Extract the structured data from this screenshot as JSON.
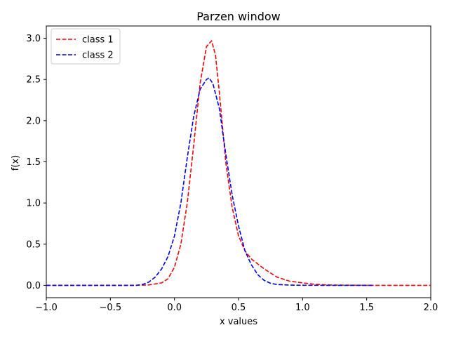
{
  "chart_data": {
    "type": "line",
    "title": "Parzen window",
    "xlabel": "x values",
    "ylabel": "f(x)",
    "xlim": [
      -1.0,
      2.0
    ],
    "ylim": [
      -0.15,
      3.15
    ],
    "xticks": [
      "−1.0",
      "−0.5",
      "0.0",
      "0.5",
      "1.0",
      "1.5",
      "2.0"
    ],
    "yticks": [
      "0.0",
      "0.5",
      "1.0",
      "1.5",
      "2.0",
      "2.5",
      "3.0"
    ],
    "grid": false,
    "legend_position": "top-left",
    "series": [
      {
        "name": "class 1",
        "color": "#ff0000",
        "line_style": "dashed",
        "x": [
          -1.0,
          -0.5,
          -0.3,
          -0.2,
          -0.1,
          -0.05,
          0.0,
          0.05,
          0.1,
          0.15,
          0.2,
          0.25,
          0.29,
          0.32,
          0.35,
          0.4,
          0.45,
          0.5,
          0.55,
          0.6,
          0.65,
          0.7,
          0.8,
          0.9,
          1.0,
          1.1,
          1.2,
          1.5,
          2.0
        ],
        "y": [
          0.0,
          0.0,
          0.0,
          0.005,
          0.03,
          0.08,
          0.22,
          0.5,
          1.0,
          1.7,
          2.45,
          2.9,
          2.97,
          2.8,
          2.35,
          1.5,
          0.95,
          0.6,
          0.42,
          0.32,
          0.26,
          0.2,
          0.1,
          0.05,
          0.03,
          0.012,
          0.004,
          0.0,
          0.0
        ]
      },
      {
        "name": "class 2",
        "color": "#0000ff",
        "line_style": "dashed",
        "x": [
          -1.0,
          -0.3,
          -0.25,
          -0.2,
          -0.15,
          -0.1,
          -0.05,
          0.0,
          0.05,
          0.1,
          0.15,
          0.2,
          0.25,
          0.27,
          0.3,
          0.35,
          0.4,
          0.45,
          0.5,
          0.55,
          0.6,
          0.65,
          0.7,
          0.75,
          0.8,
          0.9,
          1.0,
          1.2,
          1.55
        ],
        "y": [
          0.0,
          0.0,
          0.01,
          0.04,
          0.1,
          0.2,
          0.35,
          0.6,
          1.0,
          1.55,
          2.05,
          2.38,
          2.5,
          2.52,
          2.45,
          2.15,
          1.6,
          1.1,
          0.72,
          0.42,
          0.25,
          0.13,
          0.06,
          0.025,
          0.01,
          0.003,
          0.001,
          0.0,
          0.0
        ]
      }
    ]
  }
}
